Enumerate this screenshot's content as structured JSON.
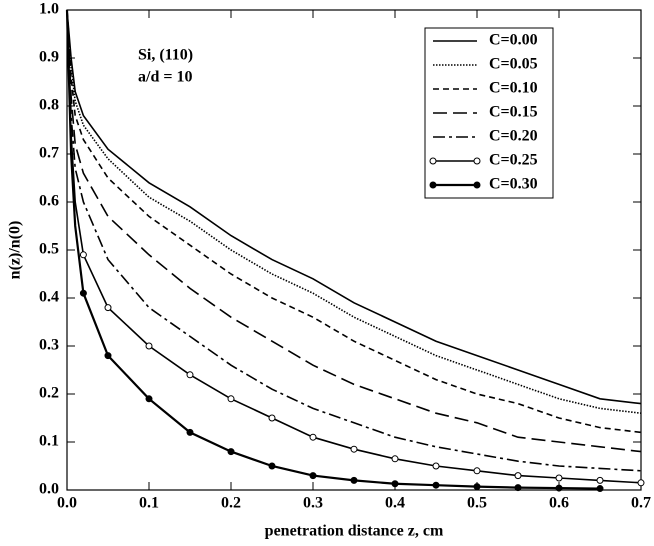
{
  "chart_data": {
    "type": "line",
    "x_label": "penetration distance  z, cm",
    "y_label": "n(z)/n(0)",
    "annotations": [
      "Si, (110)",
      "a/d = 10"
    ],
    "x": [
      0,
      0.005,
      0.01,
      0.02,
      0.05,
      0.1,
      0.15,
      0.2,
      0.25,
      0.3,
      0.35,
      0.4,
      0.45,
      0.5,
      0.55,
      0.6,
      0.65,
      0.7
    ],
    "series": [
      {
        "name": "C=0.00",
        "color": "#000000",
        "dash": "none",
        "marker": "none",
        "values": [
          1,
          0.9,
          0.83,
          0.78,
          0.71,
          0.64,
          0.59,
          0.53,
          0.48,
          0.44,
          0.39,
          0.35,
          0.31,
          0.28,
          0.25,
          0.22,
          0.19,
          0.18
        ]
      },
      {
        "name": "C=0.05",
        "color": "#000000",
        "dash": "1.5,1.5",
        "marker": "none",
        "values": [
          1,
          0.88,
          0.81,
          0.76,
          0.69,
          0.61,
          0.56,
          0.5,
          0.45,
          0.41,
          0.36,
          0.32,
          0.28,
          0.25,
          0.22,
          0.19,
          0.17,
          0.16
        ]
      },
      {
        "name": "C=0.10",
        "color": "#000000",
        "dash": "6,4",
        "marker": "none",
        "values": [
          1,
          0.86,
          0.78,
          0.73,
          0.65,
          0.57,
          0.51,
          0.45,
          0.4,
          0.36,
          0.31,
          0.27,
          0.23,
          0.2,
          0.18,
          0.15,
          0.13,
          0.12
        ]
      },
      {
        "name": "C=0.15",
        "color": "#000000",
        "dash": "14,6",
        "marker": "none",
        "values": [
          1,
          0.82,
          0.72,
          0.66,
          0.57,
          0.49,
          0.42,
          0.36,
          0.31,
          0.26,
          0.22,
          0.19,
          0.16,
          0.14,
          0.11,
          0.1,
          0.09,
          0.08
        ]
      },
      {
        "name": "C=0.20",
        "color": "#000000",
        "dash": "12,4,3,4",
        "marker": "none",
        "values": [
          1,
          0.78,
          0.67,
          0.6,
          0.48,
          0.38,
          0.32,
          0.26,
          0.21,
          0.17,
          0.14,
          0.11,
          0.09,
          0.075,
          0.06,
          0.05,
          0.045,
          0.04
        ]
      },
      {
        "name": "C=0.25",
        "color": "#000000",
        "dash": "none",
        "marker": "open",
        "values": [
          1,
          0.74,
          0.6,
          0.49,
          0.38,
          0.3,
          0.24,
          0.19,
          0.15,
          0.11,
          0.085,
          0.065,
          0.05,
          0.04,
          0.03,
          0.025,
          0.02,
          0.015
        ]
      },
      {
        "name": "C=0.30",
        "color": "#000000",
        "dash": "none",
        "marker": "filled",
        "values": [
          1,
          0.7,
          0.55,
          0.41,
          0.28,
          0.19,
          0.12,
          0.08,
          0.05,
          0.03,
          0.02,
          0.013,
          0.01,
          0.007,
          0.005,
          0.004,
          0.003,
          null
        ]
      }
    ],
    "xlim": [
      0,
      0.7
    ],
    "ylim": [
      0,
      1
    ],
    "xticks": [
      {
        "value": 0,
        "label": "0.0"
      },
      0.1,
      0.2,
      0.3,
      0.4,
      0.5,
      0.6,
      0.7
    ],
    "yticks": [
      {
        "value": 0,
        "label": "0.0"
      },
      0.1,
      0.2,
      0.3,
      0.4,
      0.5,
      0.6,
      0.7,
      0.8,
      0.9,
      {
        "value": 1,
        "label": "1.0"
      }
    ],
    "legend_position": "upper right"
  }
}
